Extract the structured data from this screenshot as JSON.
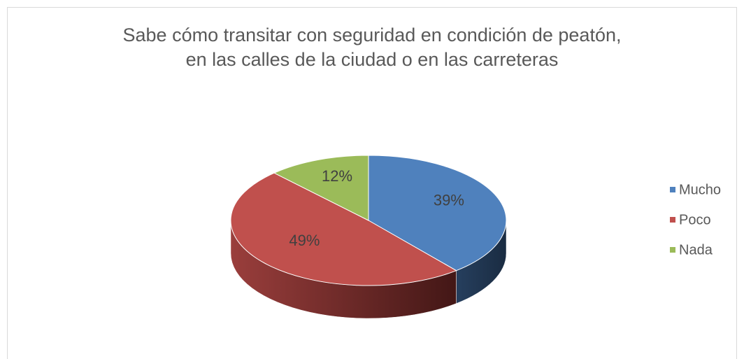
{
  "chart_data": {
    "type": "pie",
    "title": "Sabe cómo transitar con seguridad en condición de peatón, en las calles de la ciudad o en las carreteras",
    "categories": [
      "Mucho",
      "Poco",
      "Nada"
    ],
    "values": [
      39,
      49,
      12
    ],
    "value_labels": [
      "39%",
      "49%",
      "12%"
    ],
    "colors": [
      "#4f81bd",
      "#c0504d",
      "#9bbb59"
    ],
    "legend": "right"
  }
}
